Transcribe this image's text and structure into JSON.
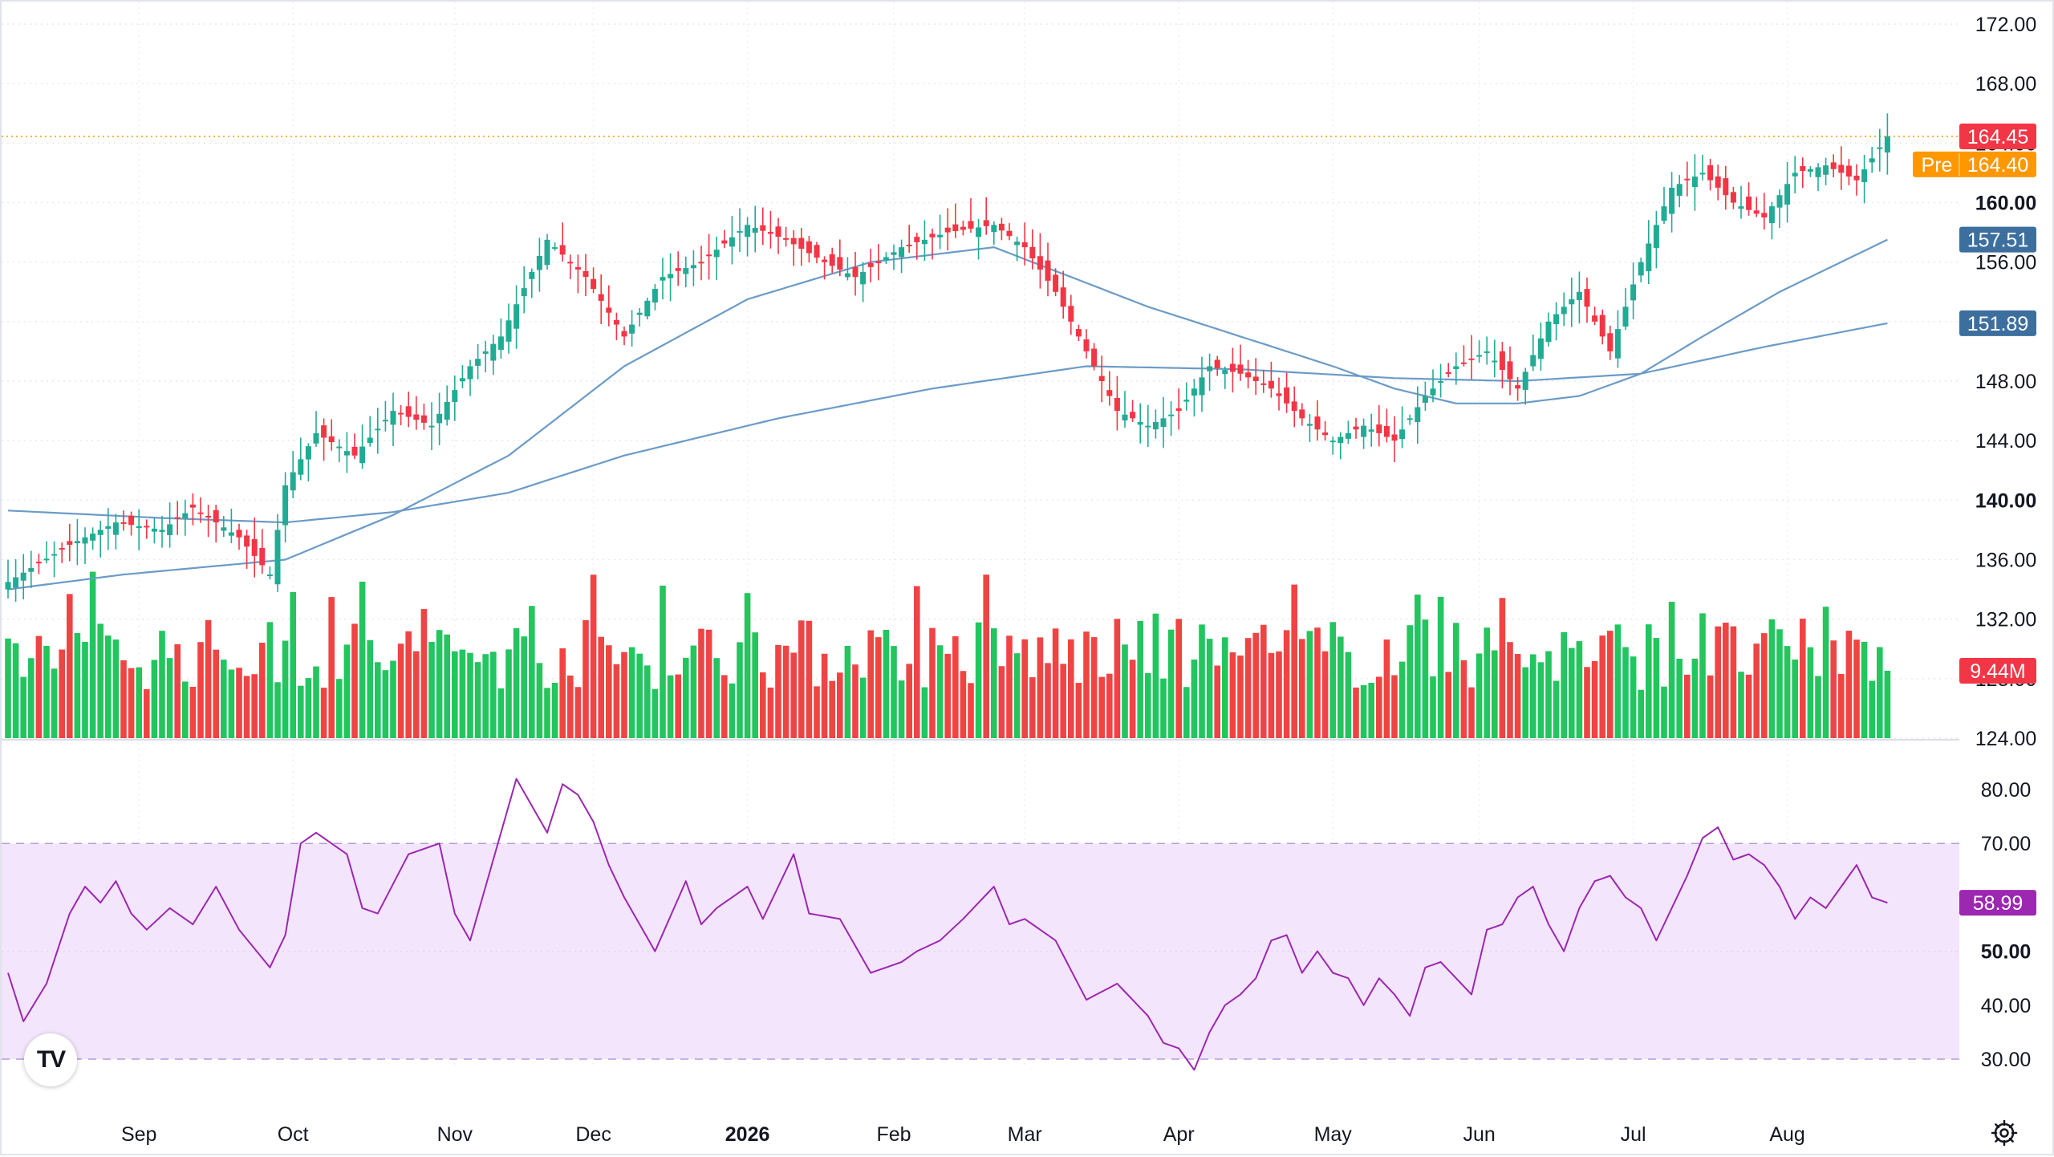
{
  "chart_data": {
    "type": "candlestick",
    "price_axis": {
      "ticks": [
        "172.00",
        "168.00",
        "164.00",
        "160.00",
        "156.00",
        "152.00",
        "148.00",
        "144.00",
        "140.00",
        "136.00",
        "132.00",
        "128.00",
        "124.00"
      ],
      "bold_ticks": [
        "160.00",
        "140.00"
      ],
      "range": [
        124,
        172
      ]
    },
    "rsi_axis": {
      "ticks": [
        "80.00",
        "70.00",
        "60.00",
        "50.00",
        "40.00",
        "30.00"
      ],
      "bold_ticks": [
        "50.00"
      ],
      "range": [
        30,
        80
      ],
      "band": [
        30,
        70
      ]
    },
    "time_axis": {
      "labels": [
        {
          "label": "Sep",
          "bold": false
        },
        {
          "label": "Oct",
          "bold": false
        },
        {
          "label": "Nov",
          "bold": false
        },
        {
          "label": "Dec",
          "bold": false
        },
        {
          "label": "2026",
          "bold": true
        },
        {
          "label": "Feb",
          "bold": false
        },
        {
          "label": "Mar",
          "bold": false
        },
        {
          "label": "Apr",
          "bold": false
        },
        {
          "label": "May",
          "bold": false
        },
        {
          "label": "Jun",
          "bold": false
        },
        {
          "label": "Jul",
          "bold": false
        },
        {
          "label": "Aug",
          "bold": false
        }
      ]
    },
    "price_labels": {
      "last": {
        "text": "164.45",
        "value": 164.45,
        "color": "#f23645"
      },
      "premarket": {
        "prefix": "Pre",
        "text": "164.40",
        "value": 164.4,
        "color": "#ff9800"
      },
      "ma_short": {
        "text": "157.51",
        "value": 157.51,
        "color": "#3d6f9e"
      },
      "ma_long": {
        "text": "151.89",
        "value": 151.89,
        "color": "#3d6f9e"
      },
      "volume": {
        "text": "9.44M",
        "color": "#f23645"
      },
      "rsi": {
        "text": "58.99",
        "value": 58.99,
        "color": "#9c27b0"
      }
    },
    "colors": {
      "up": "#22ab94",
      "down": "#f23645",
      "volume_up": "#22c55e",
      "volume_down": "#ef4444",
      "ma": "#6b9bc8",
      "rsi_line": "#9c27b0",
      "rsi_band": "#f3e5fc"
    },
    "trend_anchors": [
      [
        0,
        134.5
      ],
      [
        8,
        137
      ],
      [
        14,
        138.5
      ],
      [
        20,
        138
      ],
      [
        24,
        139.5
      ],
      [
        30,
        137.5
      ],
      [
        34,
        135
      ],
      [
        36,
        141
      ],
      [
        40,
        144.5
      ],
      [
        45,
        143
      ],
      [
        50,
        146
      ],
      [
        55,
        145
      ],
      [
        60,
        149
      ],
      [
        64,
        151
      ],
      [
        70,
        157.5
      ],
      [
        75,
        155
      ],
      [
        80,
        151
      ],
      [
        85,
        155
      ],
      [
        90,
        156
      ],
      [
        96,
        158.5
      ],
      [
        101,
        157.5
      ],
      [
        106,
        156
      ],
      [
        110,
        155
      ],
      [
        116,
        157
      ],
      [
        122,
        158
      ],
      [
        128,
        158.5
      ],
      [
        132,
        157
      ],
      [
        136,
        154
      ],
      [
        140,
        150
      ],
      [
        144,
        146
      ],
      [
        148,
        145
      ],
      [
        152,
        146
      ],
      [
        156,
        149
      ],
      [
        160,
        148.5
      ],
      [
        164,
        147.5
      ],
      [
        168,
        145.5
      ],
      [
        172,
        144
      ],
      [
        176,
        145
      ],
      [
        180,
        144
      ],
      [
        184,
        147
      ],
      [
        188,
        149
      ],
      [
        192,
        150
      ],
      [
        196,
        147.5
      ],
      [
        200,
        152
      ],
      [
        204,
        154
      ],
      [
        208,
        150
      ],
      [
        212,
        156
      ],
      [
        216,
        161
      ],
      [
        220,
        162
      ],
      [
        224,
        160
      ],
      [
        228,
        159
      ],
      [
        232,
        162
      ],
      [
        236,
        162.5
      ],
      [
        240,
        161.5
      ],
      [
        244,
        164.45
      ]
    ],
    "ma_short_anchors": [
      [
        0,
        134
      ],
      [
        15,
        135
      ],
      [
        36,
        136
      ],
      [
        50,
        139
      ],
      [
        65,
        143
      ],
      [
        80,
        149
      ],
      [
        96,
        153.5
      ],
      [
        112,
        156
      ],
      [
        128,
        157
      ],
      [
        138,
        155
      ],
      [
        148,
        153
      ],
      [
        160,
        151
      ],
      [
        172,
        149
      ],
      [
        180,
        147.5
      ],
      [
        188,
        146.5
      ],
      [
        196,
        146.5
      ],
      [
        204,
        147
      ],
      [
        212,
        148.5
      ],
      [
        220,
        151
      ],
      [
        230,
        154
      ],
      [
        244,
        157.51
      ]
    ],
    "ma_long_anchors": [
      [
        0,
        139.3
      ],
      [
        20,
        138.8
      ],
      [
        36,
        138.5
      ],
      [
        50,
        139.2
      ],
      [
        65,
        140.5
      ],
      [
        80,
        143
      ],
      [
        100,
        145.5
      ],
      [
        120,
        147.5
      ],
      [
        140,
        149
      ],
      [
        160,
        148.8
      ],
      [
        180,
        148.2
      ],
      [
        196,
        148
      ],
      [
        212,
        148.5
      ],
      [
        228,
        150.3
      ],
      [
        244,
        151.89
      ]
    ],
    "rsi_anchors": [
      [
        0,
        46
      ],
      [
        2,
        37
      ],
      [
        5,
        44
      ],
      [
        8,
        57
      ],
      [
        10,
        62
      ],
      [
        12,
        59
      ],
      [
        14,
        63
      ],
      [
        16,
        57
      ],
      [
        18,
        54
      ],
      [
        21,
        58
      ],
      [
        24,
        55
      ],
      [
        27,
        62
      ],
      [
        30,
        54
      ],
      [
        34,
        47
      ],
      [
        36,
        53
      ],
      [
        38,
        70
      ],
      [
        40,
        72
      ],
      [
        44,
        68
      ],
      [
        46,
        58
      ],
      [
        48,
        57
      ],
      [
        52,
        68
      ],
      [
        56,
        70
      ],
      [
        58,
        57
      ],
      [
        60,
        52
      ],
      [
        62,
        62
      ],
      [
        66,
        82
      ],
      [
        68,
        77
      ],
      [
        70,
        72
      ],
      [
        72,
        81
      ],
      [
        74,
        79
      ],
      [
        76,
        74
      ],
      [
        78,
        66
      ],
      [
        80,
        60
      ],
      [
        84,
        50
      ],
      [
        88,
        63
      ],
      [
        90,
        55
      ],
      [
        92,
        58
      ],
      [
        96,
        62
      ],
      [
        98,
        56
      ],
      [
        102,
        68
      ],
      [
        104,
        57
      ],
      [
        108,
        56
      ],
      [
        112,
        46
      ],
      [
        116,
        48
      ],
      [
        118,
        50
      ],
      [
        121,
        52
      ],
      [
        124,
        56
      ],
      [
        128,
        62
      ],
      [
        130,
        55
      ],
      [
        132,
        56
      ],
      [
        136,
        52
      ],
      [
        140,
        41
      ],
      [
        144,
        44
      ],
      [
        148,
        38
      ],
      [
        150,
        33
      ],
      [
        152,
        32
      ],
      [
        154,
        28
      ],
      [
        156,
        35
      ],
      [
        158,
        40
      ],
      [
        160,
        42
      ],
      [
        162,
        45
      ],
      [
        164,
        52
      ],
      [
        166,
        53
      ],
      [
        168,
        46
      ],
      [
        170,
        50
      ],
      [
        172,
        46
      ],
      [
        174,
        45
      ],
      [
        176,
        40
      ],
      [
        178,
        45
      ],
      [
        180,
        42
      ],
      [
        182,
        38
      ],
      [
        184,
        47
      ],
      [
        186,
        48
      ],
      [
        188,
        45
      ],
      [
        190,
        42
      ],
      [
        192,
        54
      ],
      [
        194,
        55
      ],
      [
        196,
        60
      ],
      [
        198,
        62
      ],
      [
        200,
        55
      ],
      [
        202,
        50
      ],
      [
        204,
        58
      ],
      [
        206,
        63
      ],
      [
        208,
        64
      ],
      [
        210,
        60
      ],
      [
        212,
        58
      ],
      [
        214,
        52
      ],
      [
        216,
        58
      ],
      [
        218,
        64
      ],
      [
        220,
        71
      ],
      [
        222,
        73
      ],
      [
        224,
        67
      ],
      [
        226,
        68
      ],
      [
        228,
        66
      ],
      [
        230,
        62
      ],
      [
        232,
        56
      ],
      [
        234,
        60
      ],
      [
        236,
        58
      ],
      [
        238,
        62
      ],
      [
        240,
        66
      ],
      [
        242,
        60
      ],
      [
        244,
        58.99
      ]
    ]
  }
}
